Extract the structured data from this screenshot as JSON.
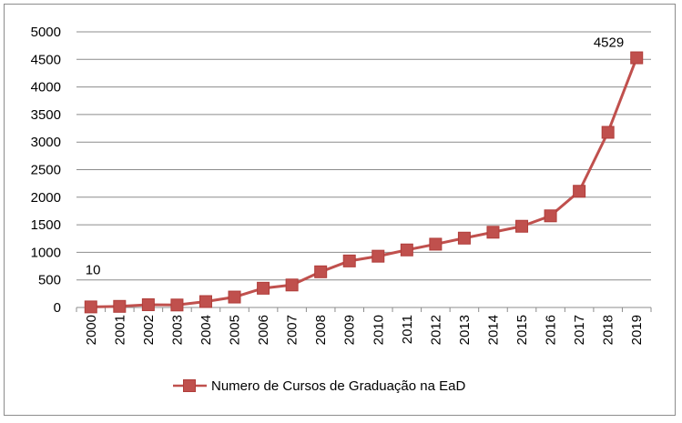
{
  "chart_data": {
    "type": "line",
    "title": "",
    "xlabel": "",
    "ylabel": "",
    "ylim": [
      0,
      5000
    ],
    "yticks": [
      0,
      500,
      1000,
      1500,
      2000,
      2500,
      3000,
      3500,
      4000,
      4500,
      5000
    ],
    "grid": true,
    "legend_position": "bottom",
    "categories": [
      "2000",
      "2001",
      "2002",
      "2003",
      "2004",
      "2005",
      "2006",
      "2007",
      "2008",
      "2009",
      "2010",
      "2011",
      "2012",
      "2013",
      "2014",
      "2015",
      "2016",
      "2017",
      "2018",
      "2019"
    ],
    "series": [
      {
        "name": "Numero de Cursos de Graduação na EaD",
        "color": "#c0504d",
        "marker": "square",
        "values": [
          10,
          20,
          50,
          45,
          107,
          189,
          349,
          408,
          647,
          844,
          930,
          1044,
          1148,
          1258,
          1365,
          1473,
          1662,
          2108,
          3177,
          4529
        ]
      }
    ],
    "data_labels": [
      {
        "index": 0,
        "text": "10"
      },
      {
        "index": 19,
        "text": "4529"
      }
    ]
  }
}
